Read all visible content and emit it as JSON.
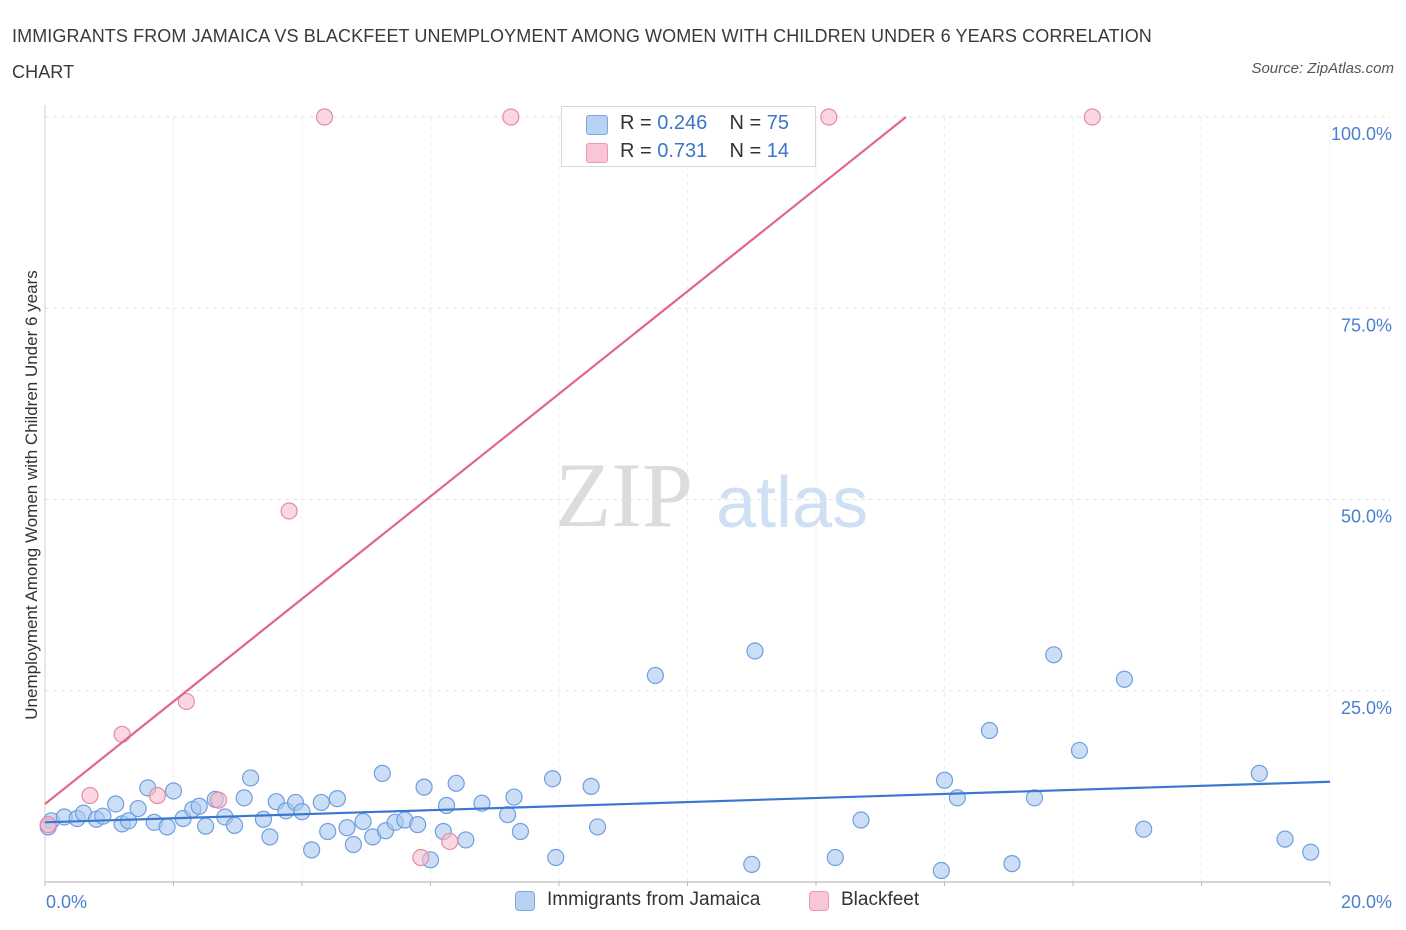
{
  "header": {
    "title": "IMMIGRANTS FROM JAMAICA VS BLACKFEET UNEMPLOYMENT AMONG WOMEN WITH CHILDREN UNDER 6 YEARS CORRELATION CHART",
    "source": "Source: ZipAtlas.com"
  },
  "watermark": {
    "zip": "ZIP",
    "atlas": "atlas"
  },
  "legend": {
    "r_label": "R =",
    "n_label": "N =",
    "series": [
      {
        "r": "0.246",
        "n": "75"
      },
      {
        "r": "0.731",
        "n": "14"
      }
    ]
  },
  "bottom_legend": {
    "items": [
      {
        "label": "Immigrants from Jamaica"
      },
      {
        "label": "Blackfeet"
      }
    ]
  },
  "chart_data": {
    "type": "scatter",
    "title": "IMMIGRANTS FROM JAMAICA VS BLACKFEET UNEMPLOYMENT AMONG WOMEN WITH CHILDREN UNDER 6 YEARS CORRELATION CHART",
    "xlabel": "",
    "ylabel": "Unemployment Among Women with Children Under 6 years",
    "xlim": [
      0,
      20
    ],
    "ylim": [
      0,
      100
    ],
    "x_tick_labels": [
      "0.0%",
      "20.0%"
    ],
    "y_ticks": [
      25,
      50,
      75,
      100
    ],
    "y_tick_labels": [
      "25.0%",
      "50.0%",
      "75.0%",
      "100.0%"
    ],
    "grid": true,
    "legend_position": "top-center",
    "series": [
      {
        "name": "Immigrants from Jamaica",
        "color": "#a9c8f0",
        "stroke": "#6e9fdf",
        "trend": {
          "x": [
            0,
            20
          ],
          "y": [
            7.8,
            13.1
          ],
          "color": "#3a78d0"
        },
        "points": [
          [
            0.1,
            8.0
          ],
          [
            0.3,
            8.5
          ],
          [
            0.5,
            8.3
          ],
          [
            0.6,
            9.0
          ],
          [
            0.8,
            8.2
          ],
          [
            0.9,
            8.6
          ],
          [
            1.1,
            10.2
          ],
          [
            1.2,
            7.6
          ],
          [
            1.3,
            8.0
          ],
          [
            1.45,
            9.6
          ],
          [
            1.6,
            12.3
          ],
          [
            1.7,
            7.8
          ],
          [
            1.9,
            7.2
          ],
          [
            2.0,
            11.9
          ],
          [
            2.15,
            8.3
          ],
          [
            2.3,
            9.5
          ],
          [
            2.4,
            9.9
          ],
          [
            2.5,
            7.3
          ],
          [
            2.65,
            10.8
          ],
          [
            2.8,
            8.5
          ],
          [
            2.95,
            7.4
          ],
          [
            3.1,
            11.0
          ],
          [
            3.2,
            13.6
          ],
          [
            3.4,
            8.2
          ],
          [
            3.5,
            5.9
          ],
          [
            3.6,
            10.5
          ],
          [
            3.75,
            9.3
          ],
          [
            3.9,
            10.4
          ],
          [
            4.0,
            9.2
          ],
          [
            4.15,
            4.2
          ],
          [
            4.3,
            10.4
          ],
          [
            4.4,
            6.6
          ],
          [
            4.55,
            10.9
          ],
          [
            4.7,
            7.1
          ],
          [
            4.8,
            4.9
          ],
          [
            4.95,
            7.9
          ],
          [
            5.1,
            5.9
          ],
          [
            5.25,
            14.2
          ],
          [
            5.3,
            6.7
          ],
          [
            5.45,
            7.8
          ],
          [
            5.6,
            8.1
          ],
          [
            5.8,
            7.5
          ],
          [
            5.9,
            12.4
          ],
          [
            6.0,
            2.9
          ],
          [
            6.2,
            6.6
          ],
          [
            6.25,
            10.0
          ],
          [
            6.4,
            12.9
          ],
          [
            6.55,
            5.5
          ],
          [
            6.8,
            10.3
          ],
          [
            7.2,
            8.8
          ],
          [
            7.3,
            11.1
          ],
          [
            7.4,
            6.6
          ],
          [
            7.9,
            13.5
          ],
          [
            7.95,
            3.2
          ],
          [
            8.5,
            12.5
          ],
          [
            8.6,
            7.2
          ],
          [
            9.5,
            27.0
          ],
          [
            11.05,
            30.2
          ],
          [
            11.0,
            2.3
          ],
          [
            12.3,
            3.2
          ],
          [
            12.7,
            8.1
          ],
          [
            13.95,
            1.5
          ],
          [
            14.0,
            13.3
          ],
          [
            14.2,
            11.0
          ],
          [
            14.7,
            19.8
          ],
          [
            15.05,
            2.4
          ],
          [
            15.4,
            11.0
          ],
          [
            15.7,
            29.7
          ],
          [
            16.1,
            17.2
          ],
          [
            16.8,
            26.5
          ],
          [
            17.1,
            6.9
          ],
          [
            18.9,
            14.2
          ],
          [
            19.3,
            5.6
          ],
          [
            19.7,
            3.9
          ],
          [
            0.05,
            7.2
          ]
        ]
      },
      {
        "name": "Blackfeet",
        "color": "#f7bccd",
        "stroke": "#e78aa6",
        "trend": {
          "x": [
            0,
            13.4
          ],
          "y": [
            10.2,
            100.0
          ],
          "color": "#e0668f"
        },
        "points": [
          [
            0.05,
            7.5
          ],
          [
            0.7,
            11.3
          ],
          [
            1.2,
            19.3
          ],
          [
            1.75,
            11.3
          ],
          [
            2.2,
            23.6
          ],
          [
            2.7,
            10.7
          ],
          [
            3.8,
            48.5
          ],
          [
            4.35,
            100.0
          ],
          [
            5.85,
            3.2
          ],
          [
            6.3,
            5.3
          ],
          [
            7.25,
            100.0
          ],
          [
            9.9,
            100.0
          ],
          [
            12.2,
            100.0
          ],
          [
            16.3,
            100.0
          ]
        ]
      }
    ]
  }
}
